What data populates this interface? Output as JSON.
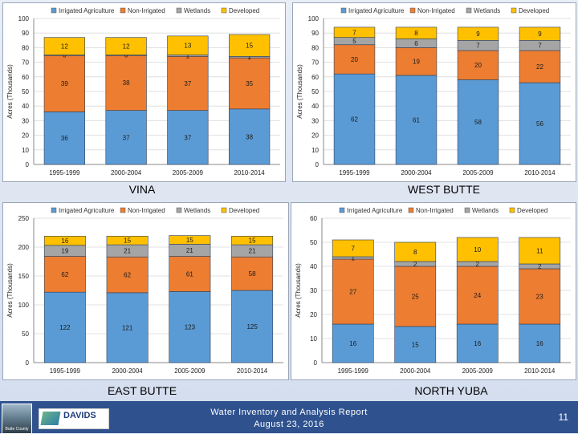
{
  "legend": [
    "Irrigated Agriculture",
    "Non-Irrigated",
    "Wetlands",
    "Developed"
  ],
  "colors": {
    "Irrigated Agriculture": "#5b9bd5",
    "Non-Irrigated": "#ed7d31",
    "Wetlands": "#a5a5a5",
    "Developed": "#ffc000",
    "footer": "#2f528f"
  },
  "chart_data": [
    {
      "type": "bar",
      "stacked": true,
      "title": "VINA",
      "ylabel": "Acres (Thousands)",
      "ylim": [
        0,
        100
      ],
      "yticks": [
        0,
        10,
        20,
        30,
        40,
        50,
        60,
        70,
        80,
        90,
        100
      ],
      "grid": true,
      "legend_position": "top",
      "categories": [
        "1995-1999",
        "2000-2004",
        "2005-2009",
        "2010-2014"
      ],
      "series": [
        {
          "name": "Irrigated Agriculture",
          "values": [
            36,
            37,
            37,
            38
          ]
        },
        {
          "name": "Non-Irrigated",
          "values": [
            39,
            38,
            37,
            35
          ]
        },
        {
          "name": "Wetlands",
          "values": [
            0,
            0,
            1,
            1
          ]
        },
        {
          "name": "Developed",
          "values": [
            12,
            12,
            13,
            15
          ]
        }
      ]
    },
    {
      "type": "bar",
      "stacked": true,
      "title": "WEST BUTTE",
      "ylabel": "Acres (Thousands)",
      "ylim": [
        0,
        100
      ],
      "yticks": [
        0,
        10,
        20,
        30,
        40,
        50,
        60,
        70,
        80,
        90,
        100
      ],
      "grid": true,
      "legend_position": "top",
      "categories": [
        "1995-1999",
        "2000-2004",
        "2005-2009",
        "2010-2014"
      ],
      "series": [
        {
          "name": "Irrigated Agriculture",
          "values": [
            62,
            61,
            58,
            56
          ]
        },
        {
          "name": "Non-Irrigated",
          "values": [
            20,
            19,
            20,
            22
          ]
        },
        {
          "name": "Wetlands",
          "values": [
            5,
            6,
            7,
            7
          ]
        },
        {
          "name": "Developed",
          "values": [
            7,
            8,
            9,
            9
          ]
        }
      ]
    },
    {
      "type": "bar",
      "stacked": true,
      "title": "EAST BUTTE",
      "ylabel": "Acres (Thousands)",
      "ylim": [
        0,
        250
      ],
      "yticks": [
        0,
        50,
        100,
        150,
        200,
        250
      ],
      "grid": true,
      "legend_position": "top",
      "categories": [
        "1995-1999",
        "2000-2004",
        "2005-2009",
        "2010-2014"
      ],
      "series": [
        {
          "name": "Irrigated Agriculture",
          "values": [
            122,
            121,
            123,
            125
          ]
        },
        {
          "name": "Non-Irrigated",
          "values": [
            62,
            62,
            61,
            58
          ]
        },
        {
          "name": "Wetlands",
          "values": [
            19,
            21,
            21,
            21
          ]
        },
        {
          "name": "Developed",
          "values": [
            16,
            15,
            15,
            15
          ]
        }
      ]
    },
    {
      "type": "bar",
      "stacked": true,
      "title": "NORTH YUBA",
      "ylabel": "Acres (Thousands)",
      "ylim": [
        0,
        60
      ],
      "yticks": [
        0,
        10,
        20,
        30,
        40,
        50,
        60
      ],
      "grid": true,
      "legend_position": "top",
      "categories": [
        "1995-1999",
        "2000-2004",
        "2005-2009",
        "2010-2014"
      ],
      "series": [
        {
          "name": "Irrigated Agriculture",
          "values": [
            16,
            15,
            16,
            16
          ]
        },
        {
          "name": "Non-Irrigated",
          "values": [
            27,
            25,
            24,
            23
          ]
        },
        {
          "name": "Wetlands",
          "values": [
            1,
            2,
            2,
            2
          ]
        },
        {
          "name": "Developed",
          "values": [
            7,
            8,
            10,
            11
          ]
        }
      ]
    }
  ],
  "footer": {
    "title": "Water Inventory and Analysis Report",
    "date": "August 23, 2016",
    "page": "11",
    "logo_butte": "Butte County",
    "logo_davids": "DAVIDS"
  }
}
